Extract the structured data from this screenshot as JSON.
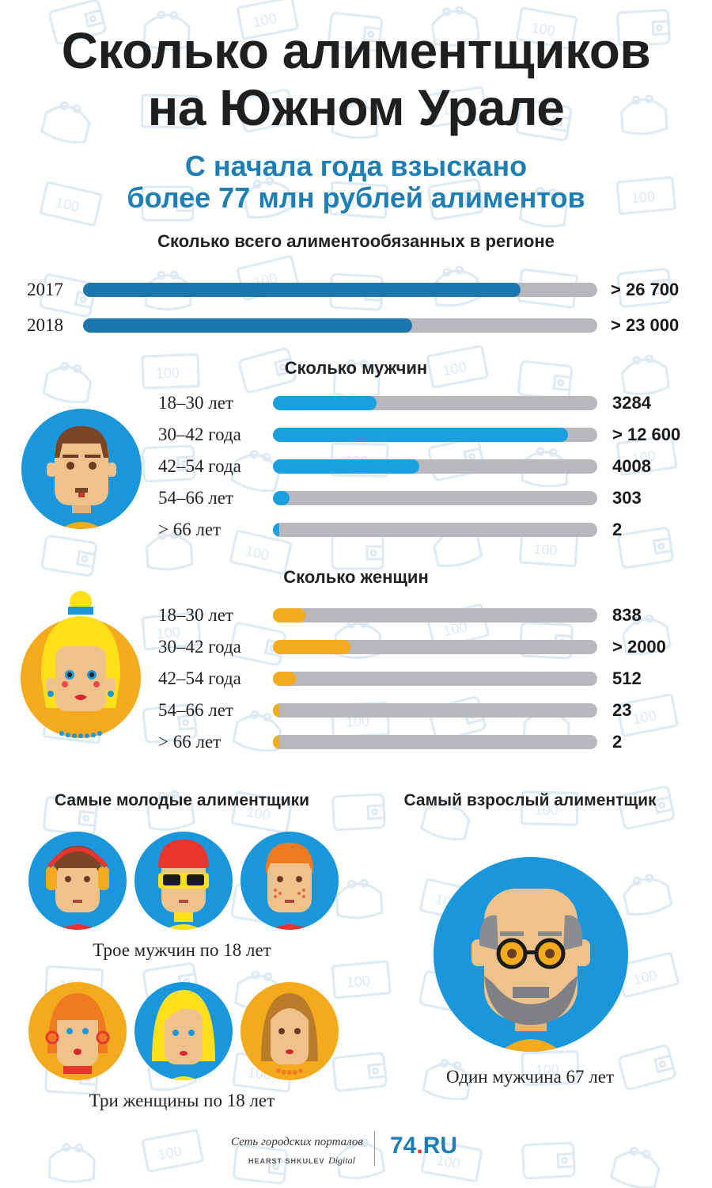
{
  "header": {
    "title_line1": "Сколько алиментщиков",
    "title_line2": "на Южном Урале",
    "subtitle_line1": "С начала года взыскано",
    "subtitle_line2": "более 77 млн рублей алиментов"
  },
  "total": {
    "title": "Сколько всего алиментообязанных в регионе",
    "rows": [
      {
        "label": "2017",
        "value": "> 26 700",
        "fill": 0.85
      },
      {
        "label": "2018",
        "value": "> 23 000",
        "fill": 0.64
      }
    ]
  },
  "men": {
    "title": "Сколько мужчин",
    "rows": [
      {
        "label": "18–30 лет",
        "value": "3284",
        "fill": 0.32
      },
      {
        "label": "30–42 года",
        "value": "> 12 600",
        "fill": 0.91
      },
      {
        "label": "42–54 года",
        "value": "4008",
        "fill": 0.45
      },
      {
        "label": "54–66 лет",
        "value": "303",
        "fill": 0.05
      },
      {
        "label": "> 66 лет",
        "value": "2",
        "fill": 0.02
      }
    ]
  },
  "women": {
    "title": "Сколько женщин",
    "rows": [
      {
        "label": "18–30 лет",
        "value": "838",
        "fill": 0.1
      },
      {
        "label": "30–42 года",
        "value": "> 2000",
        "fill": 0.24
      },
      {
        "label": "42–54 года",
        "value": "512",
        "fill": 0.07
      },
      {
        "label": "54–66 лет",
        "value": "23",
        "fill": 0.02
      },
      {
        "label": "> 66 лет",
        "value": "2",
        "fill": 0.02
      }
    ]
  },
  "youngest": {
    "title": "Самые молодые алиментщики",
    "men_caption": "Трое мужчин по 18 лет",
    "women_caption": "Три женщины по 18 лет"
  },
  "oldest": {
    "title": "Самый взрослый алиментщик",
    "caption": "Один мужчина 67 лет"
  },
  "footer": {
    "network": "Сеть городских порталов",
    "hearst": "HEARST SHKULEV",
    "digital": "Digital",
    "logo_74": "74",
    "logo_dot": ".",
    "logo_ru": "RU"
  },
  "colors": {
    "accent_blue": "#1f7fb5",
    "total_bar": "#1c77ad",
    "men_bar": "#1aa0e0",
    "women_bar": "#f4aa1d",
    "track": "#b8b8bc",
    "avatar_blue": "#1a97dc",
    "avatar_orange": "#f4aa1d"
  },
  "icons": [
    "wallet-icon",
    "purse-icon",
    "banknote-icon"
  ]
}
